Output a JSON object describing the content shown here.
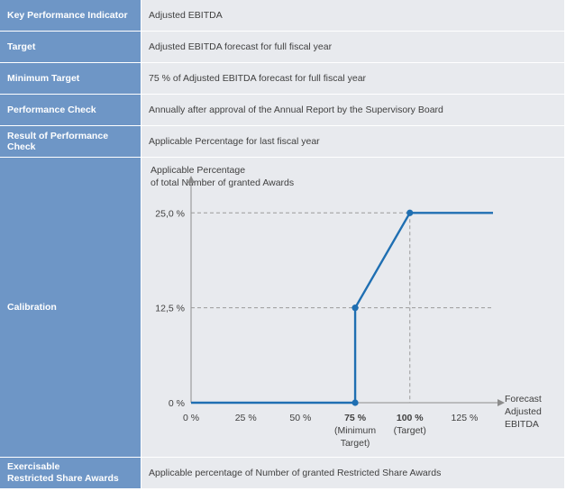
{
  "rows": [
    {
      "label": "Key Performance Indicator",
      "value": "Adjusted EBITDA"
    },
    {
      "label": "Target",
      "value": "Adjusted EBITDA forecast for full fiscal year"
    },
    {
      "label": "Minimum Target",
      "value": "75 % of Adjusted EBITDA forecast for full fiscal year"
    },
    {
      "label": "Performance Check",
      "value": "Annually after approval of the Annual Report by the Supervisory Board"
    },
    {
      "label": "Result of Performance Check",
      "value": "Applicable Percentage for last fiscal year"
    }
  ],
  "calibration": {
    "label": "Calibration"
  },
  "last_row": {
    "label_line1": "Exercisable",
    "label_line2": "Restricted Share Awards",
    "value": "Applicable percentage of Number of granted Restricted Share Awards"
  },
  "colors": {
    "header_blue": "#6e96c6",
    "cell_bg": "#e8eaee",
    "line_blue": "#1f6fb2",
    "axis_gray": "#8c8c8c"
  },
  "chart_data": {
    "type": "line",
    "ylabel_line1": "Applicable Percentage",
    "ylabel_line2": "of total Number of granted Awards",
    "xlabel_line1": "Forecast",
    "xlabel_line2": "Adjusted",
    "xlabel_line3": "EBITDA",
    "x_ticks": [
      "0 %",
      "25 %",
      "50 %",
      "75 %",
      "100 %",
      "125 %"
    ],
    "x_tick_values": [
      0,
      25,
      50,
      75,
      100,
      125
    ],
    "x_tick_notes": {
      "75": [
        "(Minimum",
        "Target)"
      ],
      "100": [
        "(Target)"
      ]
    },
    "y_ticks": [
      "0 %",
      "12,5 %",
      "25,0 %"
    ],
    "y_tick_values": [
      0,
      12.5,
      25
    ],
    "xlim": [
      0,
      138
    ],
    "ylim": [
      0,
      28
    ],
    "series": [
      {
        "x": [
          0,
          75,
          75,
          100,
          138
        ],
        "y": [
          0,
          0,
          12.5,
          25,
          25
        ]
      }
    ],
    "markers": [
      {
        "x": 75,
        "y": 0
      },
      {
        "x": 75,
        "y": 12.5
      },
      {
        "x": 100,
        "y": 25
      }
    ]
  }
}
